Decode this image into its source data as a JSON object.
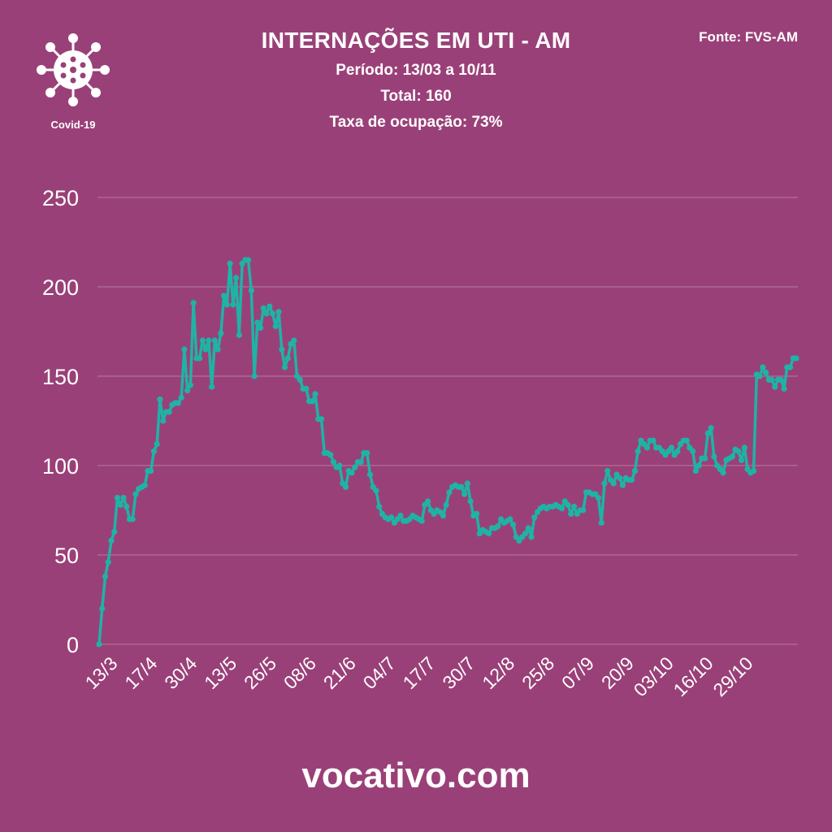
{
  "header": {
    "title": "INTERNAÇÕES EM UTI - AM",
    "period": "Período: 13/03 a 10/11",
    "total": "Total: 160",
    "occupancy": "Taxa de ocupação: 73%"
  },
  "source": "Fonte: FVS-AM",
  "logo": {
    "label": "Covid-19",
    "icon": "virus-icon"
  },
  "footer": {
    "site": "vocativo.com"
  },
  "colors": {
    "background": "#9a4078",
    "line": "#1fb3a5",
    "grid": "#b77aa0",
    "text": "#ffffff"
  },
  "chart_data": {
    "type": "line",
    "ylim": [
      0,
      250
    ],
    "yticks": [
      0,
      50,
      100,
      150,
      200,
      250
    ],
    "grid": true,
    "xtick_labels": [
      "13/3",
      "17/4",
      "30/4",
      "13/5",
      "26/5",
      "08/6",
      "21/6",
      "04/7",
      "17/7",
      "30/7",
      "12/8",
      "25/8",
      "07/9",
      "20/9",
      "03/10",
      "16/10",
      "29/10"
    ],
    "series": [
      {
        "values": [
          0,
          20,
          38,
          46,
          58,
          63,
          82,
          78,
          82,
          77,
          70,
          70,
          84,
          87,
          88,
          89,
          97,
          97,
          108,
          112,
          137,
          125,
          130,
          130,
          134,
          135,
          135,
          138,
          165,
          142,
          145,
          191,
          160,
          160,
          170,
          165,
          170,
          144,
          170,
          165,
          174,
          195,
          190,
          213,
          190,
          205,
          173,
          213,
          215,
          215,
          198,
          150,
          180,
          177,
          188,
          185,
          189,
          185,
          178,
          186,
          165,
          155,
          160,
          168,
          170,
          150,
          148,
          143,
          143,
          136,
          136,
          140,
          126,
          126,
          107,
          107,
          106,
          102,
          99,
          100,
          90,
          88,
          97,
          96,
          99,
          102,
          102,
          107,
          107,
          95,
          88,
          86,
          77,
          73,
          71,
          70,
          71,
          68,
          70,
          72,
          69,
          69,
          70,
          72,
          71,
          70,
          69,
          78,
          80,
          75,
          73,
          75,
          74,
          72,
          78,
          85,
          88,
          89,
          88,
          88,
          84,
          90,
          80,
          72,
          73,
          62,
          64,
          63,
          62,
          65,
          65,
          66,
          70,
          68,
          69,
          70,
          67,
          60,
          58,
          60,
          62,
          65,
          60,
          71,
          74,
          76,
          77,
          76,
          77,
          77,
          78,
          77,
          76,
          80,
          78,
          73,
          77,
          73,
          75,
          75,
          85,
          85,
          84,
          84,
          82,
          68,
          90,
          97,
          92,
          90,
          95,
          93,
          89,
          93,
          92,
          92,
          97,
          108,
          114,
          112,
          110,
          114,
          114,
          110,
          110,
          108,
          106,
          108,
          110,
          106,
          108,
          112,
          114,
          114,
          110,
          108,
          97,
          100,
          104,
          104,
          118,
          121,
          105,
          100,
          98,
          96,
          103,
          104,
          105,
          109,
          108,
          103,
          110,
          98,
          96,
          97,
          151,
          150,
          155,
          152,
          148,
          148,
          144,
          148,
          148,
          143,
          155,
          155,
          160,
          160
        ]
      }
    ]
  }
}
